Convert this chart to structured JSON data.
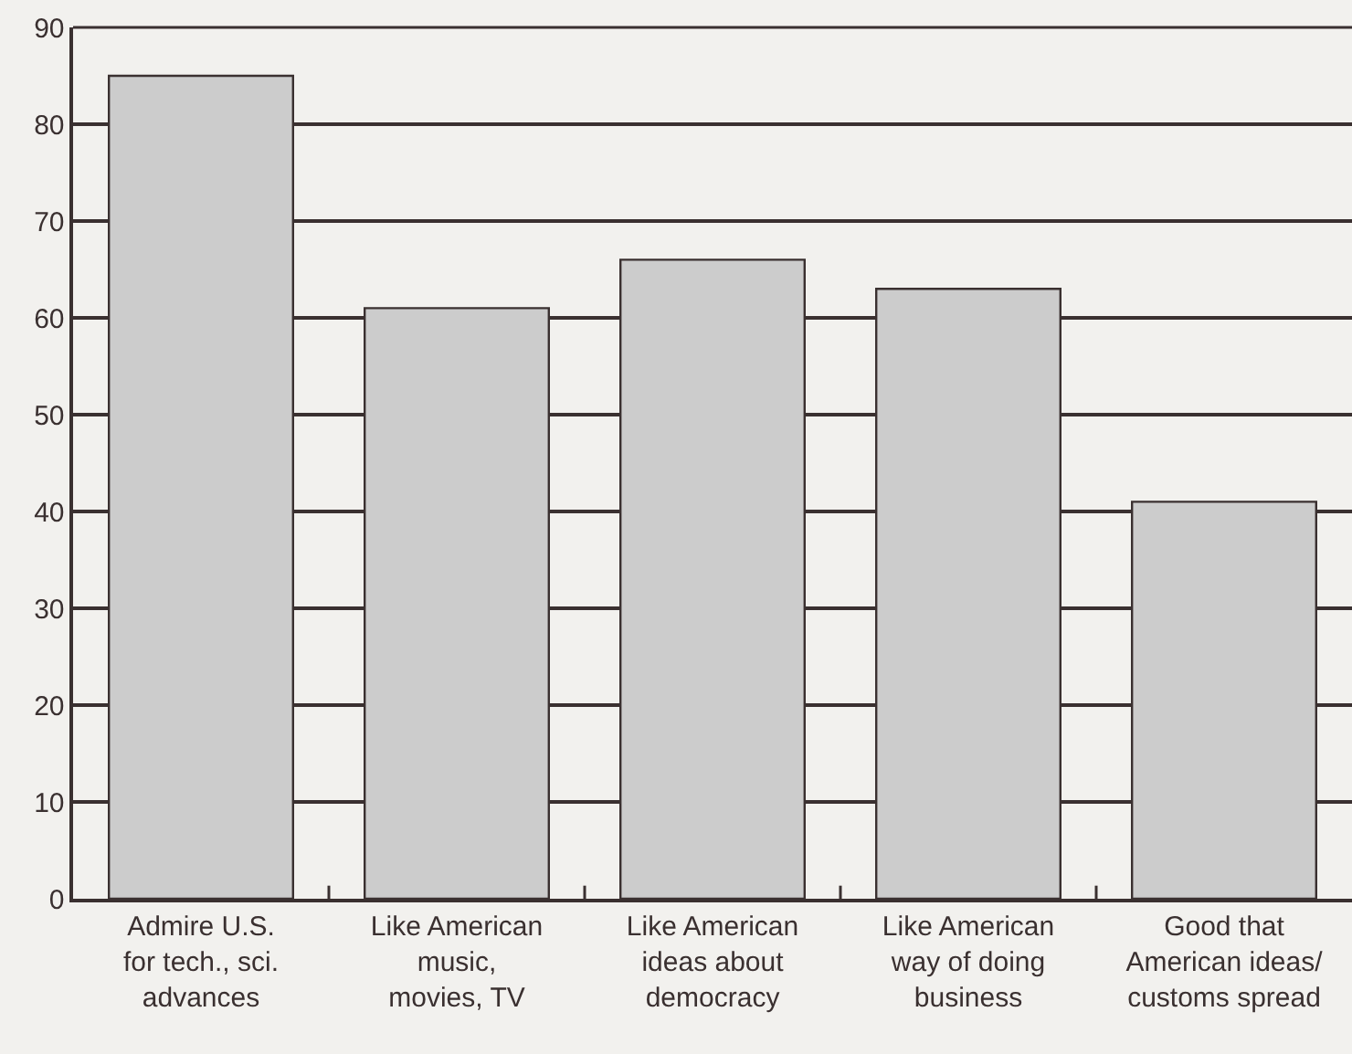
{
  "chart_data": {
    "type": "bar",
    "categories": [
      "Admire U.S.\nfor tech., sci.\nadvances",
      "Like American\nmusic,\nmovies, TV",
      "Like American\nideas about\ndemocracy",
      "Like American\nway of doing\nbusiness",
      "Good that\nAmerican ideas/\ncustoms spread"
    ],
    "values": [
      85,
      61,
      66,
      63,
      41
    ],
    "color": "#cccccc",
    "ylim": [
      0,
      90
    ],
    "yticks": [
      0,
      10,
      20,
      30,
      40,
      50,
      60,
      70,
      80,
      90
    ],
    "grid": "y"
  }
}
